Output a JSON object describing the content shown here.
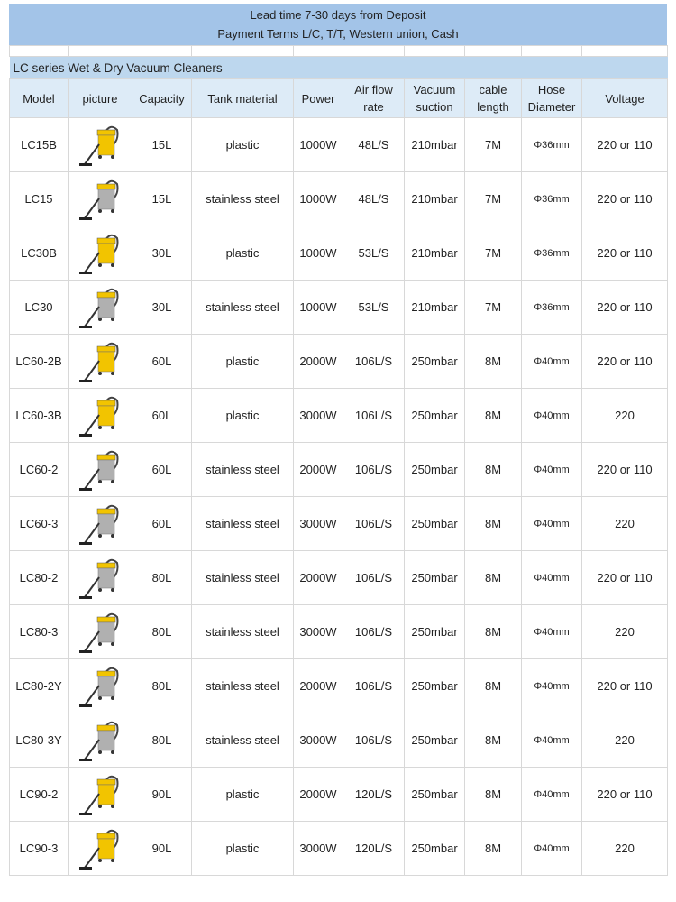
{
  "banner": {
    "line1": "Lead time 7-30 days from Deposit",
    "line2": "Payment Terms L/C, T/T, Western union, Cash"
  },
  "series_title": "LC series Wet & Dry Vacuum Cleaners",
  "headers": [
    "Model",
    "picture",
    "Capacity",
    "Tank material",
    "Power",
    "Air flow rate",
    "Vacuum suction",
    "cable length",
    "Hose Diameter",
    "Voltage"
  ],
  "colors": {
    "banner": "#a3c4e8",
    "series": "#bdd7ee",
    "header": "#ddebf7",
    "tank_yellow": "#f2c400",
    "steel": "#b0b0b0"
  },
  "rows": [
    {
      "model": "LC15B",
      "capacity": "15L",
      "tank": "plastic",
      "power": "1000W",
      "airflow": "48L/S",
      "suction": "210mbar",
      "cable": "7M",
      "hose": "Φ36mm",
      "voltage": "220 or 110"
    },
    {
      "model": "LC15",
      "capacity": "15L",
      "tank": "stainless steel",
      "power": "1000W",
      "airflow": "48L/S",
      "suction": "210mbar",
      "cable": "7M",
      "hose": "Φ36mm",
      "voltage": "220 or 110"
    },
    {
      "model": "LC30B",
      "capacity": "30L",
      "tank": "plastic",
      "power": "1000W",
      "airflow": "53L/S",
      "suction": "210mbar",
      "cable": "7M",
      "hose": "Φ36mm",
      "voltage": "220 or 110"
    },
    {
      "model": "LC30",
      "capacity": "30L",
      "tank": "stainless steel",
      "power": "1000W",
      "airflow": "53L/S",
      "suction": "210mbar",
      "cable": "7M",
      "hose": "Φ36mm",
      "voltage": "220 or 110"
    },
    {
      "model": "LC60-2B",
      "capacity": "60L",
      "tank": "plastic",
      "power": "2000W",
      "airflow": "106L/S",
      "suction": "250mbar",
      "cable": "8M",
      "hose": "Φ40mm",
      "voltage": "220 or 110"
    },
    {
      "model": "LC60-3B",
      "capacity": "60L",
      "tank": "plastic",
      "power": "3000W",
      "airflow": "106L/S",
      "suction": "250mbar",
      "cable": "8M",
      "hose": "Φ40mm",
      "voltage": "220"
    },
    {
      "model": "LC60-2",
      "capacity": "60L",
      "tank": "stainless steel",
      "power": "2000W",
      "airflow": "106L/S",
      "suction": "250mbar",
      "cable": "8M",
      "hose": "Φ40mm",
      "voltage": "220 or 110"
    },
    {
      "model": "LC60-3",
      "capacity": "60L",
      "tank": "stainless steel",
      "power": "3000W",
      "airflow": "106L/S",
      "suction": "250mbar",
      "cable": "8M",
      "hose": "Φ40mm",
      "voltage": "220"
    },
    {
      "model": "LC80-2",
      "capacity": "80L",
      "tank": "stainless steel",
      "power": "2000W",
      "airflow": "106L/S",
      "suction": "250mbar",
      "cable": "8M",
      "hose": "Φ40mm",
      "voltage": "220 or 110"
    },
    {
      "model": "LC80-3",
      "capacity": "80L",
      "tank": "stainless steel",
      "power": "3000W",
      "airflow": "106L/S",
      "suction": "250mbar",
      "cable": "8M",
      "hose": "Φ40mm",
      "voltage": "220"
    },
    {
      "model": "LC80-2Y",
      "capacity": "80L",
      "tank": "stainless steel",
      "power": "2000W",
      "airflow": "106L/S",
      "suction": "250mbar",
      "cable": "8M",
      "hose": "Φ40mm",
      "voltage": "220 or 110"
    },
    {
      "model": "LC80-3Y",
      "capacity": "80L",
      "tank": "stainless steel",
      "power": "3000W",
      "airflow": "106L/S",
      "suction": "250mbar",
      "cable": "8M",
      "hose": "Φ40mm",
      "voltage": "220"
    },
    {
      "model": "LC90-2",
      "capacity": "90L",
      "tank": "plastic",
      "power": "2000W",
      "airflow": "120L/S",
      "suction": "250mbar",
      "cable": "8M",
      "hose": "Φ40mm",
      "voltage": "220 or 110"
    },
    {
      "model": "LC90-3",
      "capacity": "90L",
      "tank": "plastic",
      "power": "3000W",
      "airflow": "120L/S",
      "suction": "250mbar",
      "cable": "8M",
      "hose": "Φ40mm",
      "voltage": "220"
    }
  ]
}
